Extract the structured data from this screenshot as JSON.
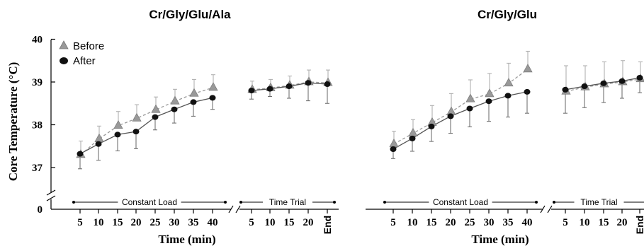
{
  "chart_data": [
    {
      "type": "line",
      "title": "Cr/Gly/Glu/Ala",
      "xlabel": "Time (min)",
      "ylabel": "Core Temperature (°C)",
      "yticks": [
        "0",
        "37",
        "38",
        "39",
        "40"
      ],
      "ylim": [
        37,
        40
      ],
      "y_axis_break": true,
      "legend": {
        "position": "top-left",
        "entries": [
          "Before",
          "After"
        ]
      },
      "phases": [
        {
          "label": "Constant Load",
          "categories": [
            "5",
            "10",
            "15",
            "20",
            "25",
            "30",
            "35",
            "40"
          ]
        },
        {
          "label": "Time Trial",
          "categories": [
            "5",
            "10",
            "15",
            "20",
            "End"
          ]
        }
      ],
      "series": [
        {
          "name": "Before",
          "marker": "triangle",
          "color": "#999999",
          "line_style": "dashed",
          "segments": [
            {
              "values": [
                37.3,
                37.67,
                37.98,
                38.15,
                38.35,
                38.55,
                38.73,
                38.87
              ],
              "errors": [
                0.32,
                0.3,
                0.33,
                0.32,
                0.3,
                0.28,
                0.33,
                0.3
              ]
            },
            {
              "values": [
                38.82,
                38.86,
                38.92,
                39.0,
                38.98
              ],
              "errors": [
                0.2,
                0.2,
                0.22,
                0.28,
                0.3
              ]
            }
          ]
        },
        {
          "name": "After",
          "marker": "circle",
          "color": "#111111",
          "line_style": "solid",
          "segments": [
            {
              "values": [
                37.32,
                37.55,
                37.77,
                37.84,
                38.18,
                38.36,
                38.53,
                38.63
              ],
              "errors": [
                0.35,
                0.38,
                0.38,
                0.4,
                0.3,
                0.32,
                0.33,
                0.27
              ]
            },
            {
              "values": [
                38.8,
                38.84,
                38.9,
                38.98,
                38.95
              ],
              "errors": [
                0.2,
                0.18,
                0.28,
                0.42,
                0.45
              ]
            }
          ]
        }
      ]
    },
    {
      "type": "line",
      "title": "Cr/Gly/Glu",
      "xlabel": "Time (min)",
      "ylabel": "",
      "ylim": [
        37,
        40
      ],
      "phases": [
        {
          "label": "Constant Load",
          "categories": [
            "5",
            "10",
            "15",
            "20",
            "25",
            "30",
            "35",
            "40"
          ]
        },
        {
          "label": "Time Trial",
          "categories": [
            "5",
            "10",
            "15",
            "20",
            "End"
          ]
        }
      ],
      "series": [
        {
          "name": "Before",
          "marker": "triangle",
          "color": "#999999",
          "line_style": "dashed",
          "segments": [
            {
              "values": [
                37.55,
                37.8,
                38.05,
                38.3,
                38.6,
                38.72,
                38.97,
                39.3
              ],
              "errors": [
                0.3,
                0.32,
                0.4,
                0.43,
                0.45,
                0.48,
                0.47,
                0.42
              ]
            },
            {
              "values": [
                38.78,
                38.88,
                38.95,
                39.0,
                39.07
              ],
              "errors": [
                0.6,
                0.5,
                0.52,
                0.5,
                0.4
              ]
            }
          ]
        },
        {
          "name": "After",
          "marker": "circle",
          "color": "#111111",
          "line_style": "solid",
          "segments": [
            {
              "values": [
                37.43,
                37.68,
                37.96,
                38.2,
                38.38,
                38.55,
                38.68,
                38.77
              ],
              "errors": [
                0.22,
                0.3,
                0.35,
                0.4,
                0.43,
                0.47,
                0.5,
                0.5
              ]
            },
            {
              "values": [
                38.82,
                38.9,
                38.97,
                39.02,
                39.1
              ],
              "errors": [
                0.55,
                0.5,
                0.45,
                0.4,
                0.35
              ]
            }
          ]
        }
      ]
    }
  ]
}
